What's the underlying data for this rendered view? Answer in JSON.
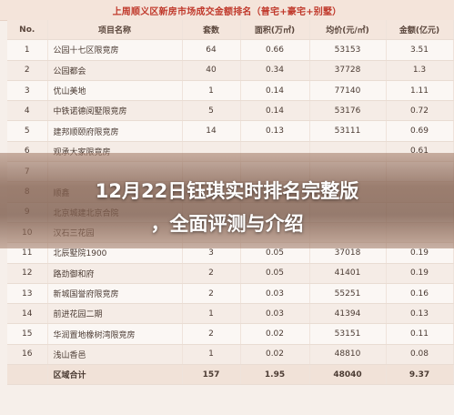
{
  "table": {
    "title": "上周顺义区新房市场成交金额排名（普宅+豪宅+别墅）",
    "headers": [
      "No.",
      "项目名称",
      "套数",
      "面积(万㎡)",
      "均价(元/㎡)",
      "金额(亿元)"
    ],
    "rows": [
      [
        "1",
        "公园十七区限竞房",
        "64",
        "0.66",
        "53153",
        "3.51"
      ],
      [
        "2",
        "公园都会",
        "40",
        "0.34",
        "37728",
        "1.3"
      ],
      [
        "3",
        "优山美地",
        "1",
        "0.14",
        "77140",
        "1.11"
      ],
      [
        "4",
        "中铁诺德阅墅限竞房",
        "5",
        "0.14",
        "53176",
        "0.72"
      ],
      [
        "5",
        "建邦顺颐府限竞房",
        "14",
        "0.13",
        "53111",
        "0.69"
      ],
      [
        "6",
        "观承大家限竞房",
        "",
        "",
        "",
        "0.61"
      ],
      [
        "7",
        "",
        "",
        "",
        "",
        ""
      ],
      [
        "8",
        "顺鑫",
        "",
        "",
        "",
        ""
      ],
      [
        "9",
        "北京城建北京合院",
        "",
        "",
        "",
        ""
      ],
      [
        "10",
        "汉石三花园",
        "",
        "",
        "",
        ""
      ],
      [
        "11",
        "北辰墅院1900",
        "3",
        "0.05",
        "37018",
        "0.19"
      ],
      [
        "12",
        "路劲御和府",
        "2",
        "0.05",
        "41401",
        "0.19"
      ],
      [
        "13",
        "新城国誉府限竞房",
        "2",
        "0.03",
        "55251",
        "0.16"
      ],
      [
        "14",
        "前进花园二期",
        "1",
        "0.03",
        "41394",
        "0.13"
      ],
      [
        "15",
        "华润置地橡树湾限竞房",
        "2",
        "0.02",
        "53151",
        "0.11"
      ],
      [
        "16",
        "浅山香邑",
        "1",
        "0.02",
        "48810",
        "0.08"
      ]
    ],
    "total": [
      "",
      "区域合计",
      "157",
      "1.95",
      "48040",
      "9.37"
    ]
  },
  "overlay": {
    "line1": "12月22日钰琪实时排名完整版",
    "line2": "，全面评测与介绍"
  }
}
